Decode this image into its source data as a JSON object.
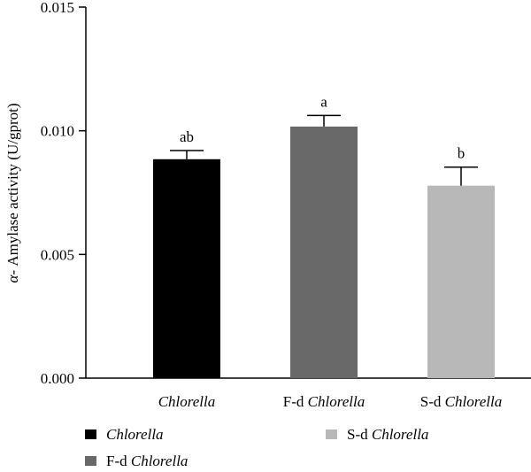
{
  "chart_data": {
    "type": "bar",
    "ylabel_prefix": "α",
    "ylabel_rest": "- Amylase activity (U/gprot)",
    "ylim": [
      0,
      0.015
    ],
    "yticks": [
      "0.000",
      "0.005",
      "0.010",
      "0.015"
    ],
    "ytick_values": [
      0,
      0.005,
      0.01,
      0.015
    ],
    "grid": false,
    "legend_position": "bottom",
    "bars": [
      {
        "prefix": "",
        "name": "Chlorella",
        "value": 0.00885,
        "error": 0.00035,
        "significance": "ab",
        "color": "#000000"
      },
      {
        "prefix": "F-d ",
        "name": "Chlorella",
        "value": 0.01017,
        "error": 0.00045,
        "significance": "a",
        "color": "#696969"
      },
      {
        "prefix": "S-d ",
        "name": "Chlorella",
        "value": 0.00778,
        "error": 0.00075,
        "significance": "b",
        "color": "#b8b8b8"
      }
    ],
    "legend": [
      {
        "prefix": "",
        "name": "Chlorella",
        "color": "#000000"
      },
      {
        "prefix": "S-d ",
        "name": "Chlorella",
        "color": "#b8b8b8"
      },
      {
        "prefix": "F-d ",
        "name": "Chlorella",
        "color": "#696969"
      }
    ]
  }
}
